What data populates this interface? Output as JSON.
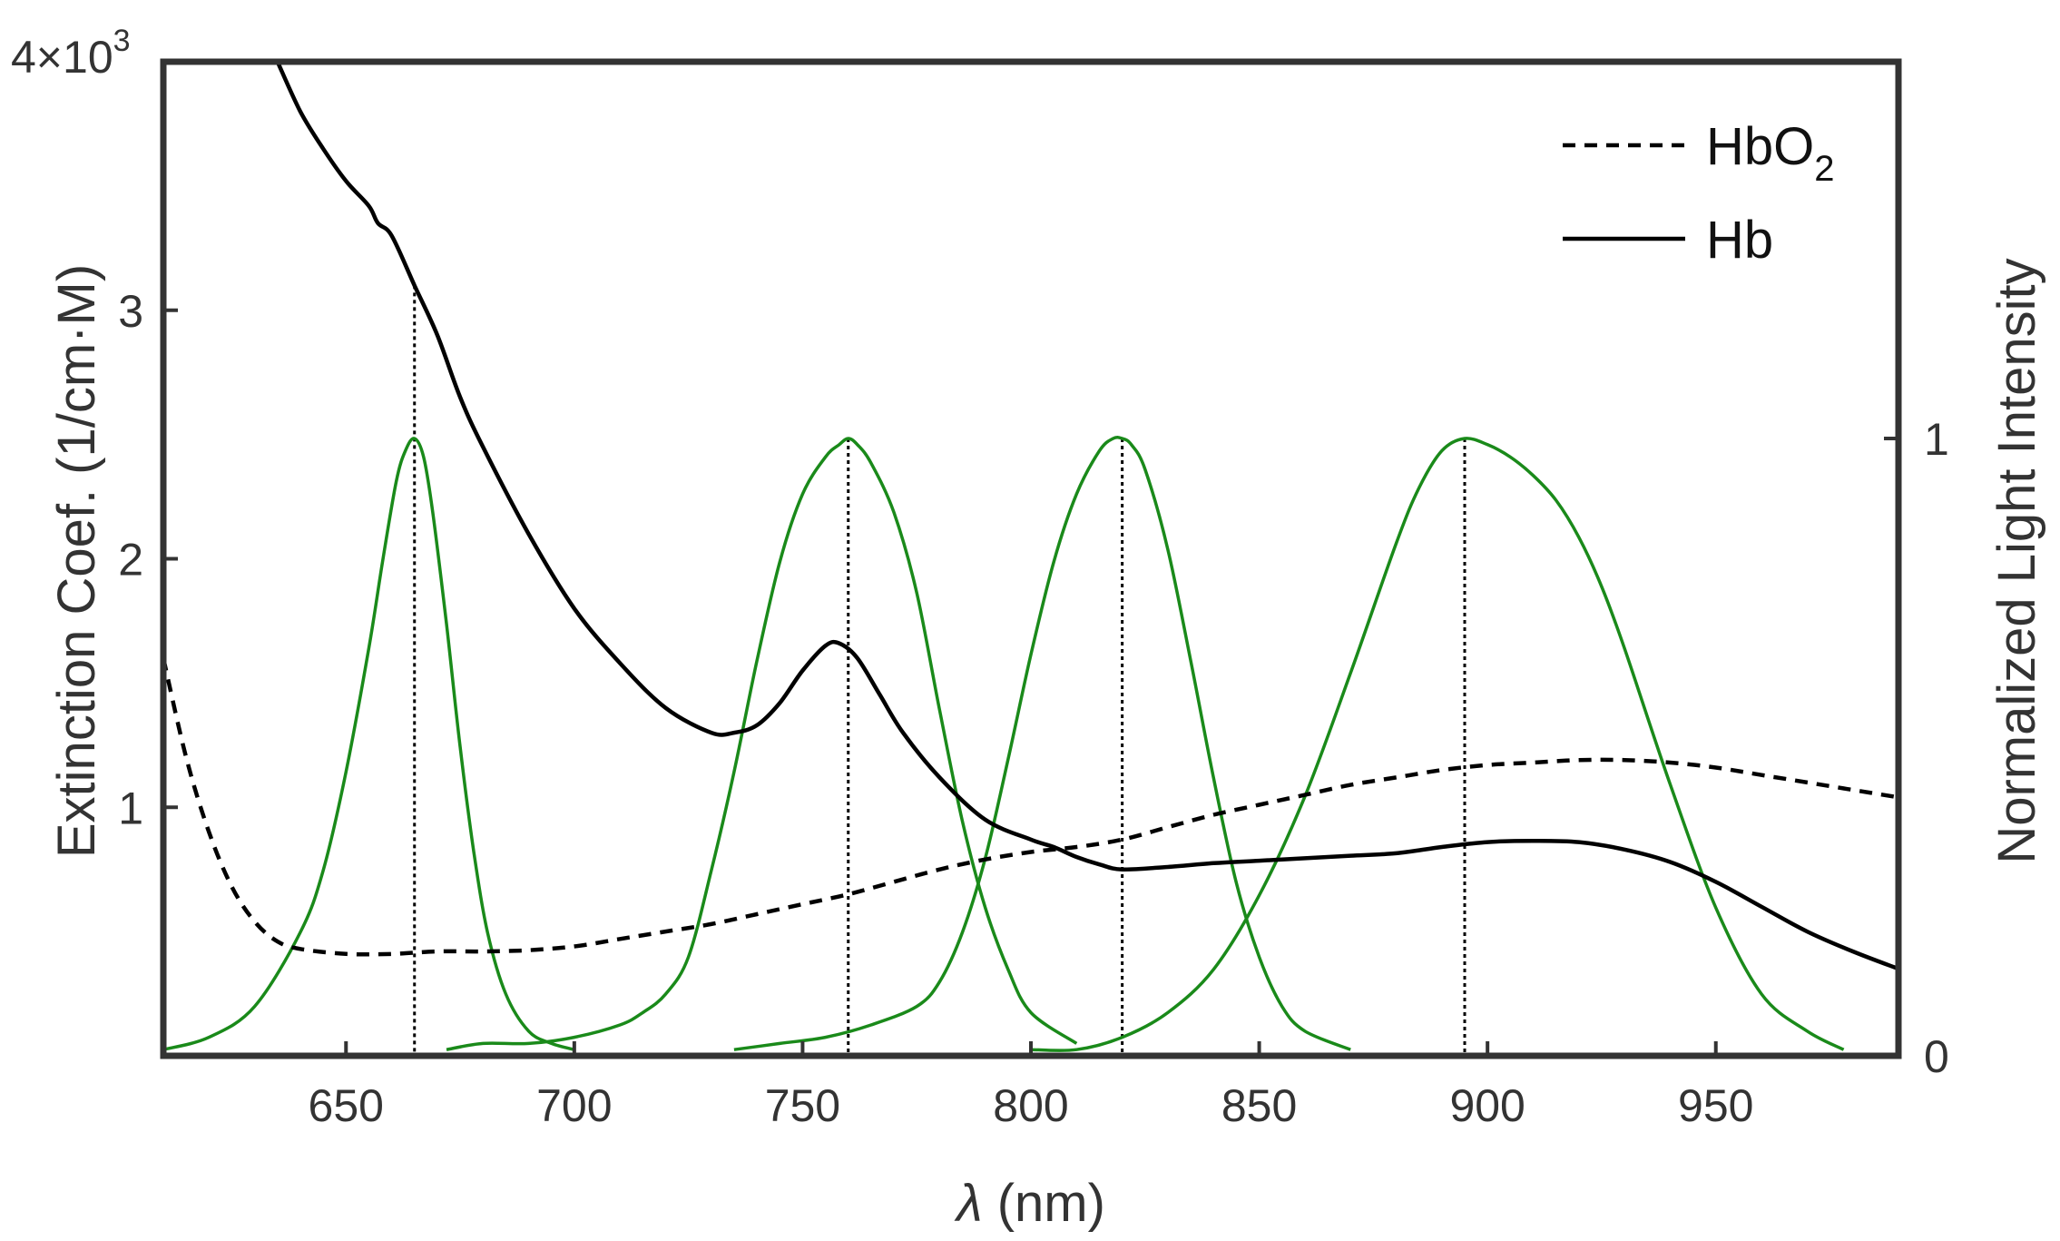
{
  "chart_data": {
    "type": "line",
    "xlabel_symbol": "λ",
    "xlabel_unit": " (nm)",
    "ylabel_left": "Extinction Coef. (1/cm·M)",
    "ylabel_right": "Normalized Light Intensity",
    "xlim": [
      610,
      990
    ],
    "ylim_left": [
      0,
      4000
    ],
    "ylim_right": [
      0,
      1.0
    ],
    "left_exponent_label": {
      "base": "4×10",
      "exp": "3"
    },
    "x_ticks": [
      650,
      700,
      750,
      800,
      850,
      900,
      950
    ],
    "left_ticks": [
      {
        "value": 1000,
        "label": "1"
      },
      {
        "value": 2000,
        "label": "2"
      },
      {
        "value": 3000,
        "label": "3"
      }
    ],
    "right_ticks": [
      {
        "value": 0,
        "label": "0"
      },
      {
        "value": 1,
        "label": "1"
      }
    ],
    "legend": {
      "position": "top-right",
      "items": [
        {
          "series": "HbO2",
          "text": "HbO",
          "sub": "2",
          "dash": "dashed"
        },
        {
          "series": "Hb",
          "text": "Hb",
          "sub": "",
          "dash": "solid"
        }
      ]
    },
    "colors": {
      "hemoglobin": "#000000",
      "light": "#1a8a1a",
      "axes": "#333333"
    },
    "series": [
      {
        "id": "Hb",
        "axis": "left",
        "style": "solid",
        "x": [
          635,
          640,
          645,
          650,
          655,
          657,
          660,
          665,
          670,
          675,
          680,
          690,
          700,
          710,
          720,
          730,
          735,
          740,
          745,
          750,
          755,
          758,
          762,
          767,
          772,
          780,
          790,
          800,
          805,
          810,
          815,
          820,
          830,
          840,
          850,
          860,
          870,
          880,
          890,
          900,
          910,
          920,
          930,
          940,
          950,
          960,
          970,
          980,
          990
        ],
        "y": [
          4000,
          3800,
          3650,
          3520,
          3420,
          3350,
          3300,
          3100,
          2900,
          2650,
          2450,
          2100,
          1800,
          1580,
          1400,
          1300,
          1300,
          1330,
          1420,
          1550,
          1650,
          1660,
          1600,
          1450,
          1300,
          1120,
          950,
          870,
          840,
          800,
          770,
          750,
          760,
          775,
          785,
          795,
          805,
          815,
          840,
          860,
          865,
          860,
          830,
          780,
          700,
          600,
          500,
          420,
          350
        ]
      },
      {
        "id": "HbO2",
        "axis": "left",
        "style": "dashed",
        "x": [
          610,
          615,
          620,
          625,
          630,
          635,
          640,
          650,
          660,
          670,
          680,
          690,
          700,
          710,
          720,
          730,
          740,
          750,
          760,
          770,
          780,
          790,
          800,
          810,
          820,
          830,
          840,
          850,
          860,
          870,
          880,
          890,
          900,
          910,
          920,
          930,
          940,
          950,
          960,
          970,
          980,
          990
        ],
        "y": [
          1600,
          1200,
          900,
          680,
          540,
          460,
          430,
          410,
          410,
          420,
          420,
          425,
          440,
          470,
          500,
          530,
          570,
          610,
          650,
          700,
          750,
          790,
          820,
          840,
          870,
          920,
          970,
          1010,
          1050,
          1090,
          1120,
          1150,
          1170,
          1180,
          1190,
          1190,
          1180,
          1160,
          1130,
          1100,
          1070,
          1040
        ]
      },
      {
        "id": "led-665",
        "axis": "right",
        "peak_nm": 665,
        "x": [
          610,
          620,
          630,
          640,
          645,
          650,
          655,
          658,
          661,
          663,
          665,
          667,
          669,
          672,
          675,
          678,
          681,
          685,
          690,
          695,
          700
        ],
        "y": [
          0.01,
          0.03,
          0.08,
          0.2,
          0.3,
          0.46,
          0.66,
          0.8,
          0.93,
          0.98,
          1.0,
          0.97,
          0.88,
          0.7,
          0.5,
          0.33,
          0.2,
          0.1,
          0.04,
          0.02,
          0.01
        ]
      },
      {
        "id": "led-760",
        "axis": "right",
        "peak_nm": 760,
        "x": [
          672,
          680,
          690,
          700,
          710,
          715,
          720,
          725,
          730,
          735,
          740,
          745,
          750,
          755,
          758,
          760,
          762,
          765,
          770,
          775,
          780,
          785,
          790,
          795,
          800,
          810
        ],
        "y": [
          0.01,
          0.02,
          0.02,
          0.03,
          0.05,
          0.07,
          0.1,
          0.16,
          0.3,
          0.46,
          0.64,
          0.8,
          0.91,
          0.97,
          0.99,
          1.0,
          0.99,
          0.96,
          0.88,
          0.75,
          0.56,
          0.38,
          0.24,
          0.14,
          0.07,
          0.02
        ]
      },
      {
        "id": "led-820",
        "axis": "right",
        "peak_nm": 820,
        "x": [
          735,
          745,
          755,
          765,
          775,
          780,
          785,
          790,
          795,
          800,
          805,
          810,
          815,
          818,
          820,
          822,
          825,
          830,
          835,
          840,
          845,
          850,
          855,
          860,
          870
        ],
        "y": [
          0.01,
          0.02,
          0.03,
          0.05,
          0.08,
          0.12,
          0.2,
          0.32,
          0.48,
          0.65,
          0.8,
          0.91,
          0.98,
          1.0,
          1.0,
          0.99,
          0.95,
          0.82,
          0.64,
          0.45,
          0.28,
          0.16,
          0.08,
          0.04,
          0.01
        ]
      },
      {
        "id": "led-895",
        "axis": "right",
        "peak_nm": 895,
        "x": [
          800,
          810,
          820,
          830,
          840,
          850,
          860,
          870,
          880,
          885,
          890,
          895,
          900,
          905,
          910,
          915,
          920,
          925,
          930,
          940,
          950,
          960,
          970,
          978
        ],
        "y": [
          0.01,
          0.01,
          0.03,
          0.07,
          0.14,
          0.26,
          0.42,
          0.62,
          0.83,
          0.92,
          0.98,
          1.0,
          0.99,
          0.97,
          0.94,
          0.9,
          0.84,
          0.76,
          0.66,
          0.44,
          0.24,
          0.1,
          0.04,
          0.01
        ]
      }
    ],
    "vlines": [
      {
        "x": 665,
        "top_series": "Hb"
      },
      {
        "x": 760,
        "top_right": 1.0
      },
      {
        "x": 820,
        "top_right": 1.0
      },
      {
        "x": 895,
        "top_right": 1.0
      }
    ]
  }
}
